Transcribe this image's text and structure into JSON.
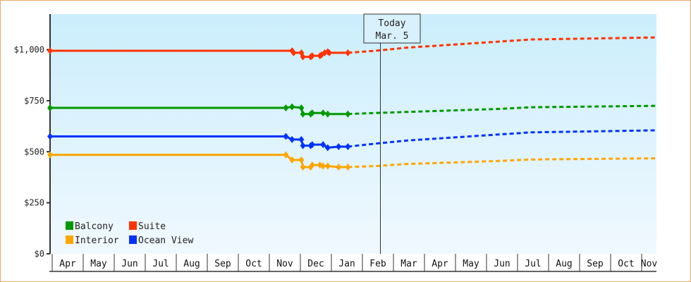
{
  "chart_data": {
    "type": "line",
    "title": "",
    "xlabel": "",
    "ylabel": "",
    "ylim": [
      0,
      1150
    ],
    "yticks": [
      "$0",
      "$250",
      "$500",
      "$750",
      "$1,000"
    ],
    "ytick_values": [
      0,
      250,
      500,
      750,
      1000
    ],
    "months": [
      "Apr",
      "May",
      "Jun",
      "Jul",
      "Aug",
      "Sep",
      "Oct",
      "Nov",
      "Dec",
      "Jan",
      "Feb",
      "Mar",
      "Apr",
      "May",
      "Jun",
      "Jul",
      "Aug",
      "Sep",
      "Oct",
      "Nov"
    ],
    "today_marker": {
      "line1": "Today",
      "line2": "Mar. 5"
    },
    "legend": [
      {
        "name": "Balcony",
        "color": "#009900"
      },
      {
        "name": "Suite",
        "color": "#ff3300"
      },
      {
        "name": "Interior",
        "color": "#ffa500"
      },
      {
        "name": "Ocean View",
        "color": "#0033ff"
      }
    ],
    "series": [
      {
        "name": "Suite",
        "color": "#ff3300",
        "historical": [
          [
            0,
            995
          ],
          [
            7.8,
            995
          ],
          [
            7.85,
            985
          ],
          [
            8.1,
            985
          ],
          [
            8.15,
            965
          ],
          [
            8.4,
            965
          ],
          [
            8.45,
            970
          ],
          [
            8.7,
            970
          ],
          [
            8.75,
            975
          ],
          [
            8.85,
            985
          ],
          [
            8.95,
            990
          ],
          [
            9.0,
            985
          ],
          [
            9.3,
            985
          ],
          [
            9.6,
            985
          ]
        ],
        "forecast": [
          [
            9.6,
            985
          ],
          [
            10.5,
            995
          ],
          [
            11.5,
            1010
          ],
          [
            12.5,
            1020
          ],
          [
            13.5,
            1030
          ],
          [
            14.5,
            1040
          ],
          [
            15.5,
            1050
          ],
          [
            16.5,
            1060
          ]
        ]
      },
      {
        "name": "Balcony",
        "color": "#009900",
        "historical": [
          [
            0,
            715
          ],
          [
            7.6,
            715
          ],
          [
            7.8,
            720
          ],
          [
            8.1,
            715
          ],
          [
            8.15,
            685
          ],
          [
            8.4,
            685
          ],
          [
            8.45,
            690
          ],
          [
            8.7,
            690
          ],
          [
            8.8,
            690
          ],
          [
            8.95,
            685
          ],
          [
            9.3,
            685
          ],
          [
            9.6,
            685
          ]
        ],
        "forecast": [
          [
            9.6,
            685
          ],
          [
            10.5,
            690
          ],
          [
            11.5,
            695
          ],
          [
            12.5,
            700
          ],
          [
            13.5,
            705
          ],
          [
            14.5,
            710
          ],
          [
            15.5,
            718
          ],
          [
            16.5,
            725
          ]
        ]
      },
      {
        "name": "Ocean View",
        "color": "#0033ff",
        "historical": [
          [
            0,
            575
          ],
          [
            7.6,
            575
          ],
          [
            7.8,
            560
          ],
          [
            8.1,
            560
          ],
          [
            8.15,
            530
          ],
          [
            8.4,
            530
          ],
          [
            8.45,
            535
          ],
          [
            8.7,
            535
          ],
          [
            8.8,
            535
          ],
          [
            8.95,
            520
          ],
          [
            9.3,
            525
          ],
          [
            9.6,
            525
          ]
        ],
        "forecast": [
          [
            9.6,
            525
          ],
          [
            10.5,
            540
          ],
          [
            11.5,
            555
          ],
          [
            12.5,
            565
          ],
          [
            13.5,
            575
          ],
          [
            14.5,
            585
          ],
          [
            15.5,
            595
          ],
          [
            16.5,
            605
          ]
        ]
      },
      {
        "name": "Interior",
        "color": "#ffa500",
        "historical": [
          [
            0,
            485
          ],
          [
            7.6,
            485
          ],
          [
            7.8,
            460
          ],
          [
            8.1,
            460
          ],
          [
            8.15,
            425
          ],
          [
            8.4,
            425
          ],
          [
            8.45,
            435
          ],
          [
            8.7,
            435
          ],
          [
            8.8,
            430
          ],
          [
            8.95,
            430
          ],
          [
            9.3,
            425
          ],
          [
            9.6,
            425
          ]
        ],
        "forecast": [
          [
            9.6,
            425
          ],
          [
            10.5,
            430
          ],
          [
            11.5,
            440
          ],
          [
            12.5,
            445
          ],
          [
            13.5,
            450
          ],
          [
            14.5,
            455
          ],
          [
            15.5,
            462
          ],
          [
            16.5,
            468
          ]
        ]
      }
    ]
  }
}
